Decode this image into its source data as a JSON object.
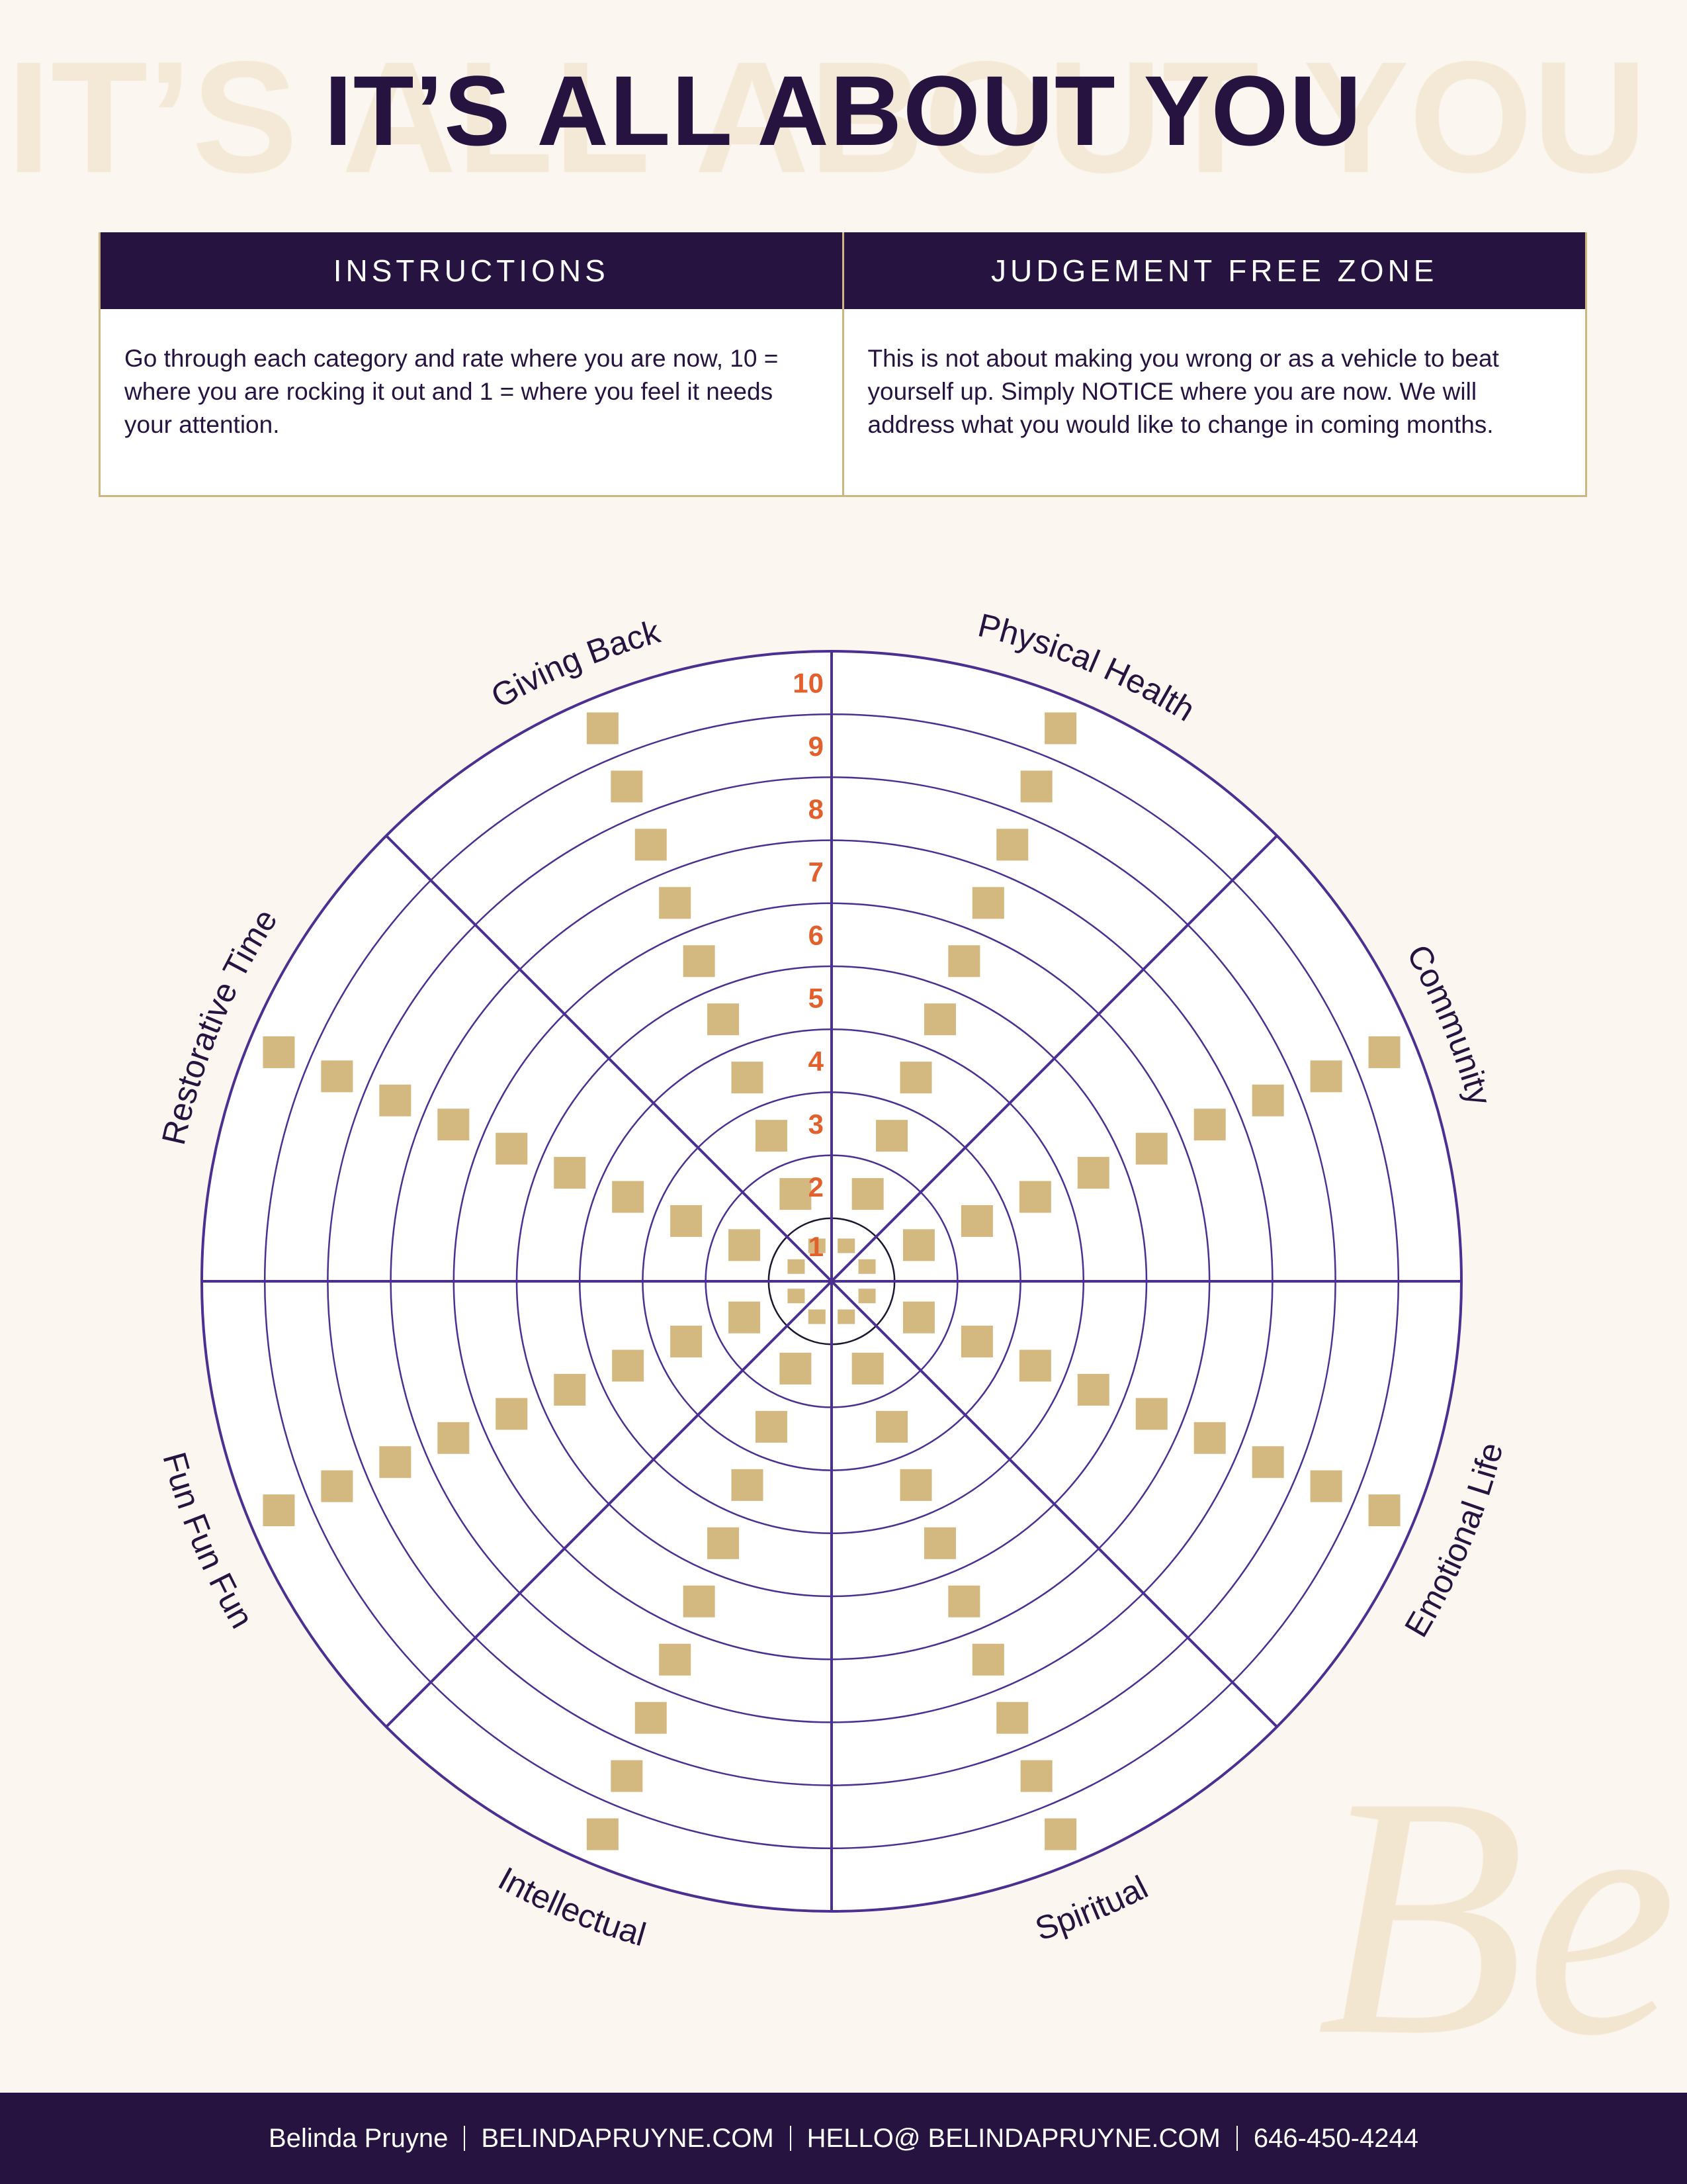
{
  "header": {
    "title": "IT’S ALL ABOUT YOU",
    "background_title": "IT’S ALL ABOUT YOU"
  },
  "watermark_logo": "Be",
  "instructions": {
    "heading": "INSTRUCTIONS",
    "body": "Go through each category and rate where you are now, 10 = where you are rocking it out and 1 = where you feel it needs your attention."
  },
  "judgement": {
    "heading": "JUDGEMENT FREE ZONE",
    "body": "This is not about making you wrong or as a vehicle to beat yourself up. Simply NOTICE where you are now. We will address what you would like to change in coming months."
  },
  "wheel": {
    "scale_labels": [
      "1",
      "2",
      "3",
      "4",
      "5",
      "6",
      "7",
      "8",
      "9",
      "10"
    ],
    "categories": [
      {
        "label": "Physical Health",
        "angle": 67.5
      },
      {
        "label": "Community",
        "angle": 22.5
      },
      {
        "label": "Emotional Life",
        "angle": -22.5
      },
      {
        "label": "Spiritual",
        "angle": -67.5
      },
      {
        "label": "Intellectual",
        "angle": -112.5
      },
      {
        "label": "Fun Fun Fun",
        "angle": -157.5
      },
      {
        "label": "Restorative Time",
        "angle": 157.5
      },
      {
        "label": "Giving Back",
        "angle": 112.5
      }
    ],
    "colors": {
      "lines": "#4b2f91",
      "inner_ring": "#1e1530",
      "numbers": "#e2602b",
      "checkbox": "#d3b97f",
      "label": "#26133f"
    }
  },
  "footer": {
    "name": "Belinda Pruyne",
    "website": "BELINDAPRUYNE.COM",
    "email": "HELLO@ BELINDAPRUYNE.COM",
    "phone": "646-450-4244"
  }
}
